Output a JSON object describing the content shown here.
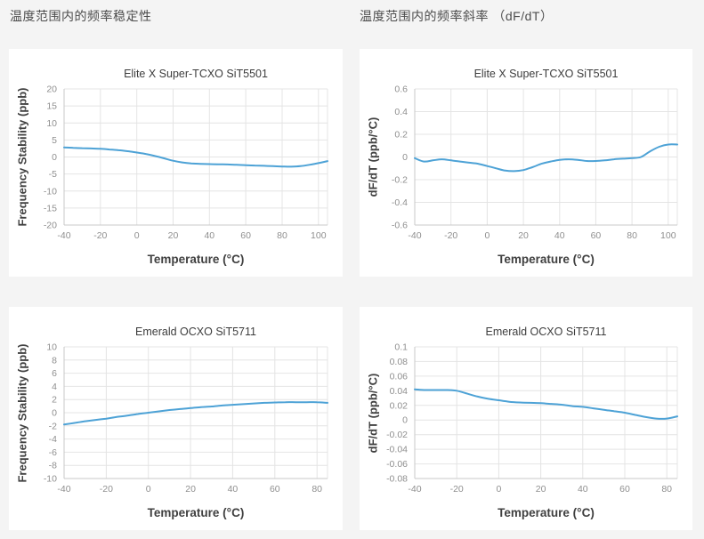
{
  "page": {
    "background": "#f4f4f4",
    "headers": {
      "left": "温度范围内的频率稳定性",
      "right": "温度范围内的频率斜率 （dF/dT）"
    }
  },
  "colors": {
    "panel": "#ffffff",
    "line": "#4da2d6",
    "grid": "#e4e4e4",
    "axis": "#c9c9c9",
    "tick_text": "#8f8f8f",
    "label_text": "#404040",
    "title_text": "#3d3d3d",
    "header_text": "#4d4d4d"
  },
  "chart_data": [
    {
      "type": "line",
      "title": "Elite X Super-TCXO SiT5501",
      "xlabel": "Temperature (°C)",
      "ylabel": "Frequency Stability (ppb)",
      "xlim": [
        -40,
        105
      ],
      "ylim": [
        -20,
        20
      ],
      "xticks": [
        -40,
        -20,
        0,
        20,
        40,
        60,
        80,
        100
      ],
      "yticks": [
        20,
        15,
        10,
        5,
        0,
        -5,
        -10,
        -15,
        -20
      ],
      "grid": true,
      "legend": "none",
      "points": [
        [
          -40,
          2.8
        ],
        [
          -35,
          2.7
        ],
        [
          -30,
          2.6
        ],
        [
          -25,
          2.5
        ],
        [
          -20,
          2.4
        ],
        [
          -15,
          2.2
        ],
        [
          -10,
          2.0
        ],
        [
          -5,
          1.7
        ],
        [
          0,
          1.3
        ],
        [
          5,
          0.9
        ],
        [
          10,
          0.3
        ],
        [
          15,
          -0.4
        ],
        [
          20,
          -1.1
        ],
        [
          25,
          -1.6
        ],
        [
          30,
          -1.9
        ],
        [
          35,
          -2.0
        ],
        [
          40,
          -2.1
        ],
        [
          45,
          -2.15
        ],
        [
          50,
          -2.2
        ],
        [
          55,
          -2.3
        ],
        [
          60,
          -2.4
        ],
        [
          65,
          -2.5
        ],
        [
          70,
          -2.6
        ],
        [
          75,
          -2.7
        ],
        [
          80,
          -2.8
        ],
        [
          85,
          -2.85
        ],
        [
          90,
          -2.7
        ],
        [
          95,
          -2.3
        ],
        [
          100,
          -1.8
        ],
        [
          105,
          -1.2
        ]
      ]
    },
    {
      "type": "line",
      "title": "Elite X Super-TCXO SiT5501",
      "xlabel": "Temperature (°C)",
      "ylabel": "dF/dT (ppb/°C)",
      "xlim": [
        -40,
        105
      ],
      "ylim": [
        -0.6,
        0.6
      ],
      "xticks": [
        -40,
        -20,
        0,
        20,
        40,
        60,
        80,
        100
      ],
      "yticks": [
        0.6,
        0.4,
        0.2,
        0,
        -0.2,
        -0.4,
        -0.6
      ],
      "grid": true,
      "legend": "none",
      "points": [
        [
          -40,
          -0.01
        ],
        [
          -35,
          -0.04
        ],
        [
          -30,
          -0.03
        ],
        [
          -25,
          -0.02
        ],
        [
          -20,
          -0.03
        ],
        [
          -15,
          -0.04
        ],
        [
          -10,
          -0.05
        ],
        [
          -5,
          -0.06
        ],
        [
          0,
          -0.08
        ],
        [
          5,
          -0.1
        ],
        [
          10,
          -0.12
        ],
        [
          15,
          -0.125
        ],
        [
          20,
          -0.115
        ],
        [
          25,
          -0.09
        ],
        [
          30,
          -0.06
        ],
        [
          35,
          -0.04
        ],
        [
          40,
          -0.025
        ],
        [
          45,
          -0.02
        ],
        [
          50,
          -0.025
        ],
        [
          55,
          -0.035
        ],
        [
          60,
          -0.035
        ],
        [
          65,
          -0.03
        ],
        [
          70,
          -0.02
        ],
        [
          75,
          -0.015
        ],
        [
          80,
          -0.01
        ],
        [
          85,
          0.0
        ],
        [
          90,
          0.05
        ],
        [
          95,
          0.09
        ],
        [
          100,
          0.11
        ],
        [
          105,
          0.11
        ]
      ]
    },
    {
      "type": "line",
      "title": "Emerald OCXO SiT5711",
      "xlabel": "Temperature (°C)",
      "ylabel": "Frequency Stability (ppb)",
      "xlim": [
        -40,
        85
      ],
      "ylim": [
        -10,
        10
      ],
      "xticks": [
        -40,
        -20,
        0,
        20,
        40,
        60,
        80
      ],
      "yticks": [
        10,
        8,
        6,
        4,
        2,
        0,
        -2,
        -4,
        -6,
        -8,
        -10
      ],
      "grid": true,
      "legend": "none",
      "points": [
        [
          -40,
          -1.8
        ],
        [
          -35,
          -1.55
        ],
        [
          -30,
          -1.3
        ],
        [
          -25,
          -1.1
        ],
        [
          -20,
          -0.9
        ],
        [
          -15,
          -0.65
        ],
        [
          -10,
          -0.45
        ],
        [
          -5,
          -0.2
        ],
        [
          0,
          0.0
        ],
        [
          5,
          0.2
        ],
        [
          10,
          0.4
        ],
        [
          15,
          0.55
        ],
        [
          20,
          0.7
        ],
        [
          25,
          0.85
        ],
        [
          30,
          0.95
        ],
        [
          35,
          1.1
        ],
        [
          40,
          1.2
        ],
        [
          45,
          1.3
        ],
        [
          50,
          1.4
        ],
        [
          55,
          1.5
        ],
        [
          60,
          1.55
        ],
        [
          65,
          1.6
        ],
        [
          70,
          1.6
        ],
        [
          75,
          1.6
        ],
        [
          80,
          1.6
        ],
        [
          85,
          1.5
        ]
      ]
    },
    {
      "type": "line",
      "title": "Emerald OCXO SiT5711",
      "xlabel": "Temperature (°C)",
      "ylabel": "dF/dT (ppb/°C)",
      "xlim": [
        -40,
        85
      ],
      "ylim": [
        -0.08,
        0.1
      ],
      "xticks": [
        -40,
        -20,
        0,
        20,
        40,
        60,
        80
      ],
      "yticks": [
        0.1,
        0.08,
        0.06,
        0.04,
        0.02,
        0,
        -0.02,
        -0.04,
        -0.06,
        -0.08
      ],
      "grid": true,
      "legend": "none",
      "points": [
        [
          -40,
          0.042
        ],
        [
          -35,
          0.041
        ],
        [
          -30,
          0.041
        ],
        [
          -25,
          0.041
        ],
        [
          -20,
          0.04
        ],
        [
          -15,
          0.036
        ],
        [
          -10,
          0.032
        ],
        [
          -5,
          0.029
        ],
        [
          0,
          0.027
        ],
        [
          5,
          0.025
        ],
        [
          10,
          0.024
        ],
        [
          15,
          0.0235
        ],
        [
          20,
          0.023
        ],
        [
          25,
          0.022
        ],
        [
          30,
          0.021
        ],
        [
          35,
          0.019
        ],
        [
          40,
          0.018
        ],
        [
          45,
          0.016
        ],
        [
          50,
          0.014
        ],
        [
          55,
          0.012
        ],
        [
          60,
          0.01
        ],
        [
          65,
          0.007
        ],
        [
          70,
          0.004
        ],
        [
          75,
          0.002
        ],
        [
          80,
          0.002
        ],
        [
          85,
          0.005
        ]
      ]
    }
  ]
}
